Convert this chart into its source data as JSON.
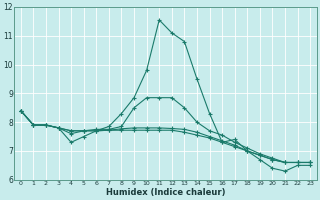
{
  "xlabel": "Humidex (Indice chaleur)",
  "background_color": "#c8ecec",
  "line_color": "#1a7a6a",
  "grid_color": "#ffffff",
  "ylim": [
    6,
    12
  ],
  "xlim": [
    -0.5,
    23.5
  ],
  "yticks": [
    6,
    7,
    8,
    9,
    10,
    11,
    12
  ],
  "xticks": [
    0,
    1,
    2,
    3,
    4,
    5,
    6,
    7,
    8,
    9,
    10,
    11,
    12,
    13,
    14,
    15,
    16,
    17,
    18,
    19,
    20,
    21,
    22,
    23
  ],
  "line0_x": [
    0,
    1,
    2,
    3,
    4,
    5,
    6,
    7,
    8,
    9,
    10,
    11,
    12,
    13,
    14,
    15,
    16,
    17,
    18,
    19,
    20,
    21,
    22,
    23
  ],
  "line0_y": [
    8.4,
    7.9,
    7.9,
    7.8,
    7.3,
    7.5,
    7.7,
    7.85,
    8.3,
    8.85,
    9.8,
    11.55,
    11.1,
    10.8,
    9.5,
    8.3,
    7.3,
    7.4,
    7.0,
    6.7,
    6.4,
    6.3,
    6.5,
    6.5
  ],
  "line1_x": [
    0,
    1,
    2,
    3,
    4,
    5,
    6,
    7,
    8,
    9,
    10,
    11,
    12,
    13,
    14,
    15,
    16,
    17,
    18,
    19,
    20,
    21,
    22,
    23
  ],
  "line1_y": [
    8.4,
    7.9,
    7.9,
    7.8,
    7.6,
    7.7,
    7.75,
    7.75,
    7.85,
    8.5,
    8.85,
    8.85,
    8.85,
    8.5,
    8.0,
    7.7,
    7.55,
    7.3,
    7.1,
    6.9,
    6.75,
    6.6,
    6.6,
    6.6
  ],
  "line2_x": [
    0,
    1,
    2,
    3,
    4,
    5,
    6,
    7,
    8,
    9,
    10,
    11,
    12,
    13,
    14,
    15,
    16,
    17,
    18,
    19,
    20,
    21,
    22,
    23
  ],
  "line2_y": [
    8.4,
    7.9,
    7.9,
    7.8,
    7.7,
    7.7,
    7.7,
    7.72,
    7.77,
    7.8,
    7.8,
    7.8,
    7.78,
    7.75,
    7.65,
    7.5,
    7.35,
    7.2,
    7.0,
    6.85,
    6.7,
    6.6,
    6.6,
    6.6
  ],
  "line3_x": [
    0,
    1,
    2,
    3,
    4,
    5,
    6,
    7,
    8,
    9,
    10,
    11,
    12,
    13,
    14,
    15,
    16,
    17,
    18,
    19,
    20,
    21,
    22,
    23
  ],
  "line3_y": [
    8.4,
    7.9,
    7.9,
    7.8,
    7.7,
    7.7,
    7.7,
    7.72,
    7.72,
    7.72,
    7.72,
    7.72,
    7.72,
    7.65,
    7.55,
    7.45,
    7.3,
    7.15,
    7.0,
    6.85,
    6.7,
    6.6,
    6.6,
    6.6
  ]
}
